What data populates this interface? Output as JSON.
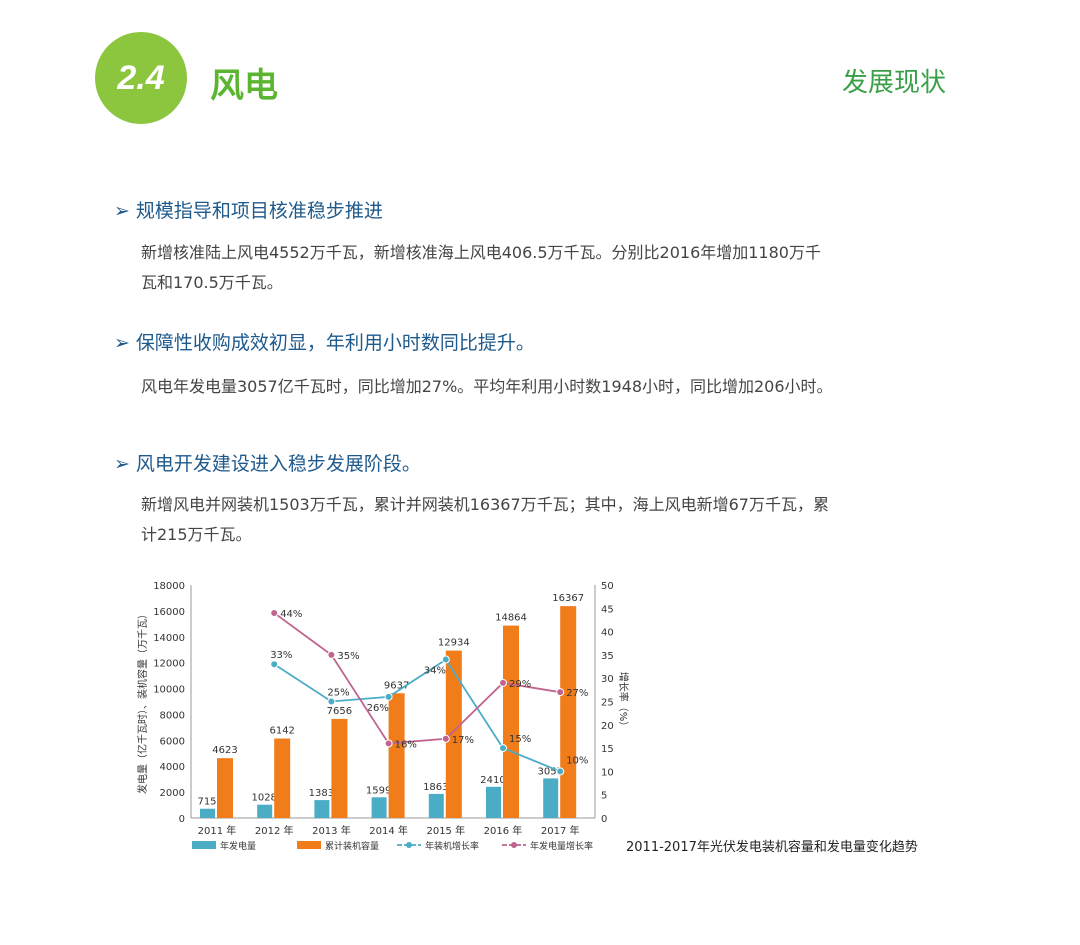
{
  "header": {
    "section_number": "2.4",
    "title": "风电",
    "right_title": "发展现状"
  },
  "sections": [
    {
      "heading": "规模指导和项目核准稳步推进",
      "body": [
        "新增核准陆上风电4552万千瓦，新增核准海上风电406.5万千瓦。分别比2016年增加1180万千",
        "瓦和170.5万千瓦。"
      ]
    },
    {
      "heading": "保障性收购成效初显，年利用小时数同比提升。",
      "body": [
        "风电年发电量3057亿千瓦时，同比增加27%。平均年利用小时数1948小时，同比增加206小时。"
      ]
    },
    {
      "heading": "风电开发建设进入稳步发展阶段。",
      "body": [
        "新增风电并网装机1503万千瓦，累计并网装机16367万千瓦；其中，海上风电新增67万千瓦，累",
        "计215万千瓦。"
      ]
    }
  ],
  "chart_data": {
    "type": "bar",
    "caption": "2011-2017年光伏发电装机容量和发电量变化趋势",
    "categories": [
      "2011 年",
      "2012 年",
      "2013 年",
      "2014 年",
      "2015 年",
      "2016 年",
      "2017 年"
    ],
    "ylabel": "发电量（亿千瓦时）、装机容量（万千瓦）",
    "y2label": "增长率（%）",
    "ylim": [
      0,
      18000
    ],
    "y2lim": [
      0,
      50
    ],
    "yticks": [
      0,
      2000,
      4000,
      6000,
      8000,
      10000,
      12000,
      14000,
      16000,
      18000
    ],
    "y2ticks": [
      0,
      5,
      10,
      15,
      20,
      25,
      30,
      35,
      40,
      45,
      50
    ],
    "legend_position": "bottom",
    "series": [
      {
        "name": "年发电量",
        "kind": "bar",
        "color": "#4bacc6",
        "values": [
          715,
          1028,
          1383,
          1599,
          1863,
          2410,
          3057
        ]
      },
      {
        "name": "累计装机容量",
        "kind": "bar",
        "color": "#f07d1a",
        "values": [
          4623,
          6142,
          7656,
          9637,
          12934,
          14864,
          16367
        ]
      },
      {
        "name": "年装机增长率",
        "kind": "line",
        "axis": "right",
        "color": "#4bacc6",
        "values": [
          null,
          33,
          25,
          26,
          34,
          15,
          10
        ],
        "labels": [
          "",
          "33%",
          "25%",
          "26%",
          "34%",
          "15%",
          "10%"
        ]
      },
      {
        "name": "年发电量增长率",
        "kind": "line",
        "axis": "right",
        "color": "#c0648f",
        "values": [
          null,
          44,
          35,
          16,
          17,
          29,
          27
        ],
        "labels": [
          "",
          "44%",
          "35%",
          "16%",
          "17%",
          "29%",
          "27%"
        ]
      }
    ]
  }
}
